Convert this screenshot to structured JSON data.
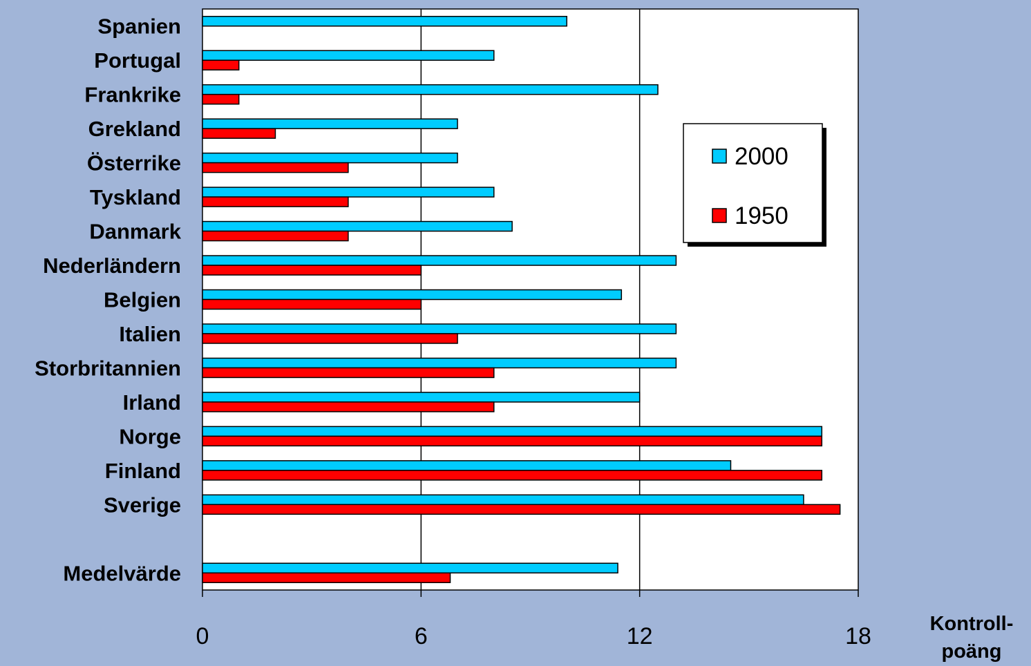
{
  "chart_data": {
    "type": "bar",
    "orientation": "horizontal",
    "categories": [
      "Spanien",
      "Portugal",
      "Frankrike",
      "Grekland",
      "Österrike",
      "Tyskland",
      "Danmark",
      "Nederländern",
      "Belgien",
      "Italien",
      "Storbritannien",
      "Irland",
      "Norge",
      "Finland",
      "Sverige",
      "",
      "Medelvärde"
    ],
    "series": [
      {
        "name": "2000",
        "color": "#00ccff",
        "values": [
          10,
          8,
          12.5,
          7,
          7,
          8,
          8.5,
          13,
          11.5,
          13,
          13,
          12,
          17,
          14.5,
          16.5,
          null,
          11.4
        ]
      },
      {
        "name": "1950",
        "color": "#ff0000",
        "values": [
          null,
          1,
          1,
          2,
          4,
          4,
          4,
          6,
          6,
          7,
          8,
          8,
          17,
          17,
          17.5,
          null,
          6.8
        ]
      }
    ],
    "xlim": [
      0,
      18
    ],
    "xticks": [
      "0",
      "6",
      "12",
      "18"
    ],
    "xlabel_lines": [
      "Kontroll-",
      "poäng"
    ],
    "grid": "vertical major gridlines",
    "legend_position": "right",
    "background": "#a1b5d8",
    "plot_background": "#ffffff"
  }
}
